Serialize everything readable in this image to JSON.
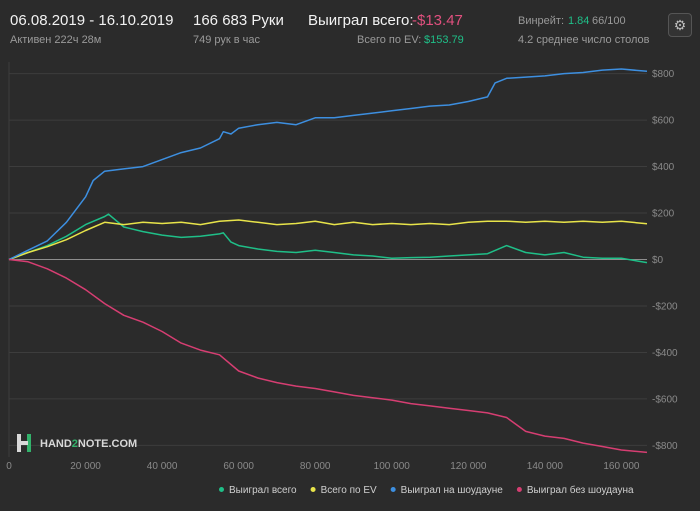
{
  "header": {
    "date_range": "06.08.2019 - 16.10.2019",
    "active": "Активен 222ч 28м",
    "hands": "166 683 Руки",
    "hands_per_hour": "749 рук в час",
    "won_total_label": "Выиграл всего:",
    "won_total_value": "-$13.47",
    "ev_label": "Всего по EV:",
    "ev_value": "$153.79",
    "winrate_label": "Винрейт:",
    "winrate_value": "1.84",
    "winrate_extra": "66/100",
    "tables": "4.2 среднее число столов",
    "settings_icon": "gear-icon"
  },
  "logo": {
    "text_a": "HAND",
    "text_b": "2",
    "text_c": "NOTE.COM"
  },
  "chart_data": {
    "type": "line",
    "xlim": [
      0,
      166683
    ],
    "ylim": [
      -850,
      850
    ],
    "x_ticks": [
      0,
      20000,
      40000,
      60000,
      80000,
      100000,
      120000,
      140000,
      160000
    ],
    "x_tick_labels": [
      "0",
      "20 000",
      "40 000",
      "60 000",
      "80 000",
      "100 000",
      "120 000",
      "140 000",
      "160 000"
    ],
    "y_ticks": [
      800,
      600,
      400,
      200,
      0,
      -200,
      -400,
      -600,
      -800
    ],
    "y_tick_labels": [
      "$800",
      "$600",
      "$400",
      "$200",
      "$0",
      "-$200",
      "-$400",
      "-$600",
      "-$800"
    ],
    "grid": true,
    "legend_position": "bottom-right",
    "series": [
      {
        "name": "Выиграл всего",
        "color": "#1fbf88",
        "x": [
          0,
          5000,
          10000,
          15000,
          20000,
          25000,
          26000,
          30000,
          35000,
          40000,
          45000,
          50000,
          55000,
          56000,
          58000,
          60000,
          65000,
          70000,
          75000,
          80000,
          85000,
          90000,
          95000,
          100000,
          105000,
          110000,
          115000,
          120000,
          125000,
          130000,
          135000,
          140000,
          145000,
          150000,
          155000,
          160000,
          166683
        ],
        "y": [
          0,
          30,
          60,
          100,
          150,
          185,
          195,
          140,
          120,
          105,
          95,
          100,
          110,
          115,
          75,
          60,
          45,
          35,
          30,
          40,
          30,
          20,
          15,
          5,
          8,
          10,
          15,
          20,
          25,
          60,
          30,
          20,
          30,
          10,
          5,
          5,
          -13.47
        ]
      },
      {
        "name": "Всего по EV",
        "color": "#e8e44a",
        "x": [
          0,
          5000,
          10000,
          15000,
          20000,
          25000,
          30000,
          35000,
          40000,
          45000,
          50000,
          55000,
          60000,
          65000,
          70000,
          75000,
          80000,
          85000,
          90000,
          95000,
          100000,
          105000,
          110000,
          115000,
          120000,
          125000,
          130000,
          135000,
          140000,
          145000,
          150000,
          155000,
          160000,
          166683
        ],
        "y": [
          0,
          30,
          55,
          85,
          125,
          160,
          150,
          160,
          155,
          160,
          150,
          165,
          170,
          160,
          150,
          155,
          165,
          150,
          160,
          150,
          155,
          150,
          155,
          150,
          160,
          165,
          165,
          160,
          165,
          160,
          165,
          160,
          165,
          153.79
        ]
      },
      {
        "name": "Выиграл на шоудауне",
        "color": "#3d8fe0",
        "x": [
          0,
          5000,
          10000,
          15000,
          20000,
          22000,
          25000,
          30000,
          35000,
          40000,
          45000,
          50000,
          55000,
          56000,
          58000,
          60000,
          65000,
          70000,
          75000,
          80000,
          85000,
          90000,
          95000,
          100000,
          105000,
          110000,
          115000,
          120000,
          125000,
          127000,
          130000,
          135000,
          140000,
          145000,
          150000,
          155000,
          160000,
          166683
        ],
        "y": [
          0,
          40,
          80,
          160,
          270,
          340,
          380,
          390,
          400,
          430,
          460,
          480,
          520,
          550,
          540,
          565,
          580,
          590,
          580,
          610,
          610,
          620,
          630,
          640,
          650,
          660,
          665,
          680,
          700,
          760,
          780,
          785,
          790,
          800,
          805,
          815,
          820,
          810
        ]
      },
      {
        "name": "Выиграл без шоудауна",
        "color": "#d63e72",
        "x": [
          0,
          5000,
          10000,
          15000,
          20000,
          25000,
          30000,
          35000,
          40000,
          45000,
          50000,
          55000,
          60000,
          65000,
          70000,
          75000,
          80000,
          85000,
          90000,
          95000,
          100000,
          105000,
          110000,
          115000,
          120000,
          125000,
          130000,
          135000,
          140000,
          145000,
          150000,
          155000,
          160000,
          166683
        ],
        "y": [
          0,
          -10,
          -40,
          -80,
          -130,
          -190,
          -240,
          -270,
          -310,
          -360,
          -390,
          -410,
          -480,
          -510,
          -530,
          -545,
          -555,
          -570,
          -585,
          -595,
          -605,
          -620,
          -630,
          -640,
          -650,
          -660,
          -680,
          -740,
          -760,
          -770,
          -790,
          -805,
          -820,
          -830
        ]
      }
    ]
  }
}
